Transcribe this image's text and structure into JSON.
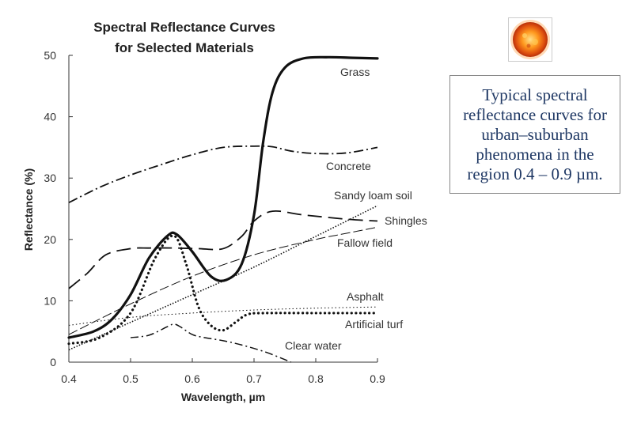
{
  "caption": "Typical spectral reflectance curves for urban–suburban phenomena in the region 0.4 – 0.9 µm.",
  "sun_icon": "sun-icon",
  "chart_data": {
    "type": "line",
    "title_line1": "Spectral Reflectance Curves",
    "title_line2": "for Selected Materials",
    "xlabel": "Wavelength, µm",
    "ylabel": "Reflectance (%)",
    "xlim": [
      0.4,
      0.9
    ],
    "ylim": [
      0,
      50
    ],
    "xticks": [
      "0.4",
      "0.5",
      "0.6",
      "0.7",
      "0.8",
      "0.9"
    ],
    "yticks": [
      "0",
      "10",
      "20",
      "30",
      "40",
      "50"
    ],
    "series": [
      {
        "name": "Grass",
        "style": "solid-thick",
        "x": [
          0.4,
          0.44,
          0.47,
          0.5,
          0.53,
          0.56,
          0.575,
          0.6,
          0.63,
          0.655,
          0.68,
          0.7,
          0.715,
          0.73,
          0.75,
          0.78,
          0.82,
          0.86,
          0.9
        ],
        "y": [
          4,
          5,
          7,
          11,
          17,
          20.6,
          20.8,
          18,
          14,
          13.4,
          16,
          24,
          36,
          44,
          48,
          49.5,
          49.7,
          49.6,
          49.5
        ]
      },
      {
        "name": "Concrete",
        "style": "dash-dot",
        "x": [
          0.4,
          0.45,
          0.5,
          0.55,
          0.6,
          0.65,
          0.7,
          0.73,
          0.76,
          0.8,
          0.85,
          0.9
        ],
        "y": [
          26,
          28.5,
          30.5,
          32.2,
          33.8,
          35,
          35.2,
          35.1,
          34.4,
          34,
          34.1,
          35
        ]
      },
      {
        "name": "Sandy loam soil",
        "style": "dotted",
        "x": [
          0.4,
          0.5,
          0.6,
          0.7,
          0.8,
          0.9
        ],
        "y": [
          2,
          6.5,
          11,
          15.5,
          20.5,
          25.5
        ]
      },
      {
        "name": "Shingles",
        "style": "long-dash",
        "x": [
          0.4,
          0.43,
          0.46,
          0.5,
          0.53,
          0.57,
          0.61,
          0.65,
          0.68,
          0.7,
          0.73,
          0.78,
          0.85,
          0.9
        ],
        "y": [
          12,
          14.5,
          17.5,
          18.5,
          18.6,
          18.6,
          18.5,
          18.5,
          20.5,
          23,
          24.6,
          24,
          23.3,
          23
        ]
      },
      {
        "name": "Fallow field",
        "style": "thin-dash",
        "x": [
          0.4,
          0.5,
          0.6,
          0.7,
          0.8,
          0.85,
          0.9
        ],
        "y": [
          4.5,
          9.5,
          14,
          17.5,
          20,
          21,
          22
        ]
      },
      {
        "name": "Asphalt",
        "style": "fine-dot",
        "x": [
          0.4,
          0.5,
          0.6,
          0.7,
          0.8,
          0.9
        ],
        "y": [
          6,
          7.3,
          8,
          8.5,
          8.8,
          9
        ]
      },
      {
        "name": "Artificial turf",
        "style": "heavy-dot",
        "x": [
          0.4,
          0.45,
          0.5,
          0.54,
          0.57,
          0.59,
          0.61,
          0.63,
          0.65,
          0.67,
          0.69,
          0.72,
          0.8,
          0.9
        ],
        "y": [
          3,
          4,
          8,
          17,
          20.6,
          16,
          9,
          6,
          5.2,
          6.5,
          7.8,
          8,
          8,
          8
        ]
      },
      {
        "name": "Clear water",
        "style": "dash-dot-thin",
        "x": [
          0.5,
          0.53,
          0.56,
          0.57,
          0.58,
          0.6,
          0.62,
          0.65,
          0.68,
          0.72,
          0.76
        ],
        "y": [
          4,
          4.4,
          5.8,
          6.2,
          5.8,
          4.5,
          4,
          3.5,
          2.8,
          1.6,
          0
        ]
      }
    ]
  }
}
